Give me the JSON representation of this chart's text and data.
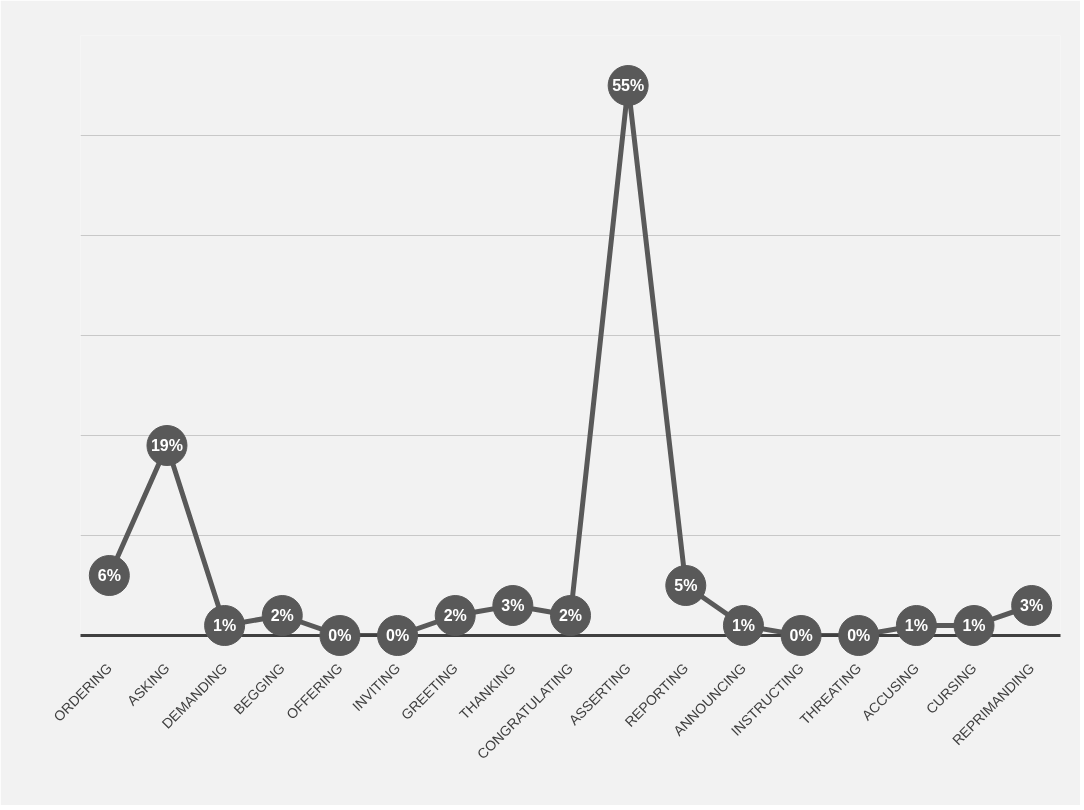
{
  "chart_data": {
    "type": "line",
    "categories": [
      "ORDERING",
      "ASKING",
      "DEMANDING",
      "BEGGING",
      "OFFERING",
      "INVITING",
      "GREETING",
      "THANKING",
      "CONGRATULATING",
      "ASSERTING",
      "REPORTING",
      "ANNOUNCING",
      "INSTRUCTING",
      "THREATING",
      "ACCUSING",
      "CURSING",
      "REPRIMANDING"
    ],
    "series": [
      {
        "color": "#595959",
        "values": [
          6,
          19,
          1,
          2,
          0,
          0,
          2,
          3,
          2,
          55,
          5,
          1,
          0,
          0,
          1,
          1,
          3
        ],
        "value_labels": [
          "6%",
          "19%",
          "1%",
          "2%",
          "0%",
          "0%",
          "2%",
          "3%",
          "2%",
          "55%",
          "5%",
          "1%",
          "0%",
          "0%",
          "1%",
          "1%",
          "3%"
        ]
      }
    ],
    "ylim": [
      0,
      60
    ],
    "yticks": [
      {
        "value": 0,
        "label": null
      },
      {
        "value": 10,
        "label": null
      },
      {
        "value": 20,
        "label": null
      },
      {
        "value": 30,
        "label": null
      },
      {
        "value": 40,
        "label": null
      },
      {
        "value": 50,
        "label": null
      },
      {
        "value": 60,
        "label": null
      }
    ],
    "tick_labels": "x",
    "grid": "y",
    "marker": "circle",
    "line_style": "solid",
    "data_labels": true
  }
}
